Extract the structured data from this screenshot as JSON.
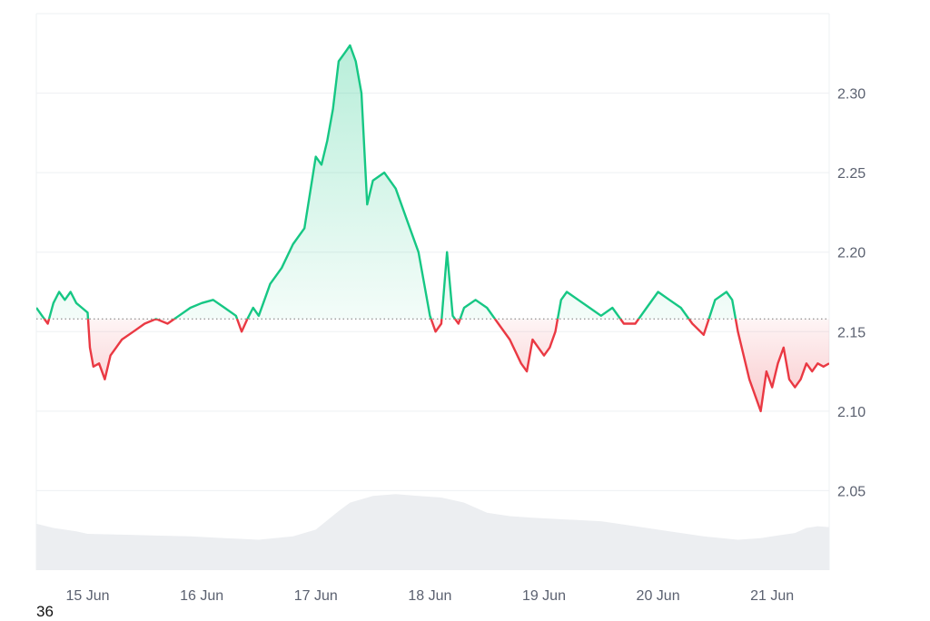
{
  "footer_label": "36",
  "chart_data": {
    "type": "line",
    "ylim": [
      2.0,
      2.35
    ],
    "y_ticks": [
      "2.05",
      "2.10",
      "2.15",
      "2.20",
      "2.25",
      "2.30"
    ],
    "y_tick_values": [
      2.05,
      2.1,
      2.15,
      2.2,
      2.25,
      2.3
    ],
    "x_tick_labels": [
      "15 Jun",
      "16 Jun",
      "17 Jun",
      "18 Jun",
      "19 Jun",
      "20 Jun",
      "21 Jun"
    ],
    "x_range": [
      14.55,
      21.5
    ],
    "x_tick_values": [
      15,
      16,
      17,
      18,
      19,
      20,
      21
    ],
    "baseline": 2.158,
    "grid": true,
    "colors": {
      "up": "#16c784",
      "down": "#ea3943",
      "volume": "#eceef1",
      "grid": "#eef0f3"
    },
    "price_series": {
      "x": [
        14.55,
        14.6,
        14.65,
        14.7,
        14.75,
        14.8,
        14.85,
        14.9,
        14.95,
        15.0,
        15.02,
        15.05,
        15.1,
        15.15,
        15.2,
        15.25,
        15.3,
        15.4,
        15.5,
        15.6,
        15.7,
        15.8,
        15.9,
        16.0,
        16.1,
        16.2,
        16.3,
        16.35,
        16.4,
        16.45,
        16.5,
        16.55,
        16.6,
        16.7,
        16.8,
        16.9,
        17.0,
        17.05,
        17.1,
        17.15,
        17.2,
        17.25,
        17.3,
        17.35,
        17.4,
        17.45,
        17.5,
        17.6,
        17.7,
        17.8,
        17.85,
        17.9,
        17.95,
        18.0,
        18.05,
        18.1,
        18.15,
        18.2,
        18.25,
        18.3,
        18.4,
        18.5,
        18.6,
        18.7,
        18.8,
        18.85,
        18.9,
        18.95,
        19.0,
        19.05,
        19.1,
        19.15,
        19.2,
        19.3,
        19.4,
        19.5,
        19.6,
        19.7,
        19.8,
        19.9,
        20.0,
        20.1,
        20.2,
        20.3,
        20.4,
        20.5,
        20.6,
        20.65,
        20.7,
        20.8,
        20.9,
        20.95,
        21.0,
        21.05,
        21.1,
        21.15,
        21.2,
        21.25,
        21.3,
        21.35,
        21.4,
        21.45,
        21.5
      ],
      "y": [
        2.165,
        2.16,
        2.155,
        2.168,
        2.175,
        2.17,
        2.175,
        2.168,
        2.165,
        2.162,
        2.14,
        2.128,
        2.13,
        2.12,
        2.135,
        2.14,
        2.145,
        2.15,
        2.155,
        2.158,
        2.155,
        2.16,
        2.165,
        2.168,
        2.17,
        2.165,
        2.16,
        2.15,
        2.158,
        2.165,
        2.16,
        2.17,
        2.18,
        2.19,
        2.205,
        2.215,
        2.26,
        2.255,
        2.27,
        2.29,
        2.32,
        2.325,
        2.33,
        2.32,
        2.3,
        2.23,
        2.245,
        2.25,
        2.24,
        2.22,
        2.21,
        2.2,
        2.18,
        2.16,
        2.15,
        2.155,
        2.2,
        2.16,
        2.155,
        2.165,
        2.17,
        2.165,
        2.155,
        2.145,
        2.13,
        2.125,
        2.145,
        2.14,
        2.135,
        2.14,
        2.15,
        2.17,
        2.175,
        2.17,
        2.165,
        2.16,
        2.165,
        2.155,
        2.155,
        2.165,
        2.175,
        2.17,
        2.165,
        2.155,
        2.148,
        2.17,
        2.175,
        2.17,
        2.15,
        2.12,
        2.1,
        2.125,
        2.115,
        2.13,
        2.14,
        2.12,
        2.115,
        2.12,
        2.13,
        2.125,
        2.13,
        2.128,
        2.13
      ]
    },
    "volume_series": {
      "x": [
        14.55,
        14.7,
        14.9,
        15.0,
        15.3,
        15.6,
        15.9,
        16.2,
        16.5,
        16.8,
        17.0,
        17.2,
        17.3,
        17.5,
        17.7,
        17.9,
        18.1,
        18.3,
        18.5,
        18.7,
        18.9,
        19.2,
        19.5,
        19.8,
        20.1,
        20.4,
        20.7,
        20.9,
        21.0,
        21.1,
        21.2,
        21.3,
        21.4,
        21.5
      ],
      "v": [
        0.55,
        0.5,
        0.46,
        0.43,
        0.42,
        0.41,
        0.4,
        0.38,
        0.36,
        0.4,
        0.48,
        0.7,
        0.8,
        0.88,
        0.9,
        0.88,
        0.86,
        0.8,
        0.68,
        0.64,
        0.62,
        0.6,
        0.58,
        0.52,
        0.46,
        0.4,
        0.36,
        0.38,
        0.4,
        0.42,
        0.44,
        0.5,
        0.52,
        0.51
      ]
    }
  }
}
